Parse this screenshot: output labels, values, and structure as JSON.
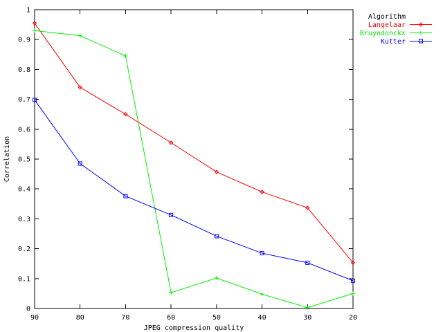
{
  "chart_data": {
    "type": "line",
    "title": "",
    "xlabel": "JPEG compression quality",
    "ylabel": "Correlation",
    "x": [
      90,
      80,
      70,
      60,
      50,
      40,
      30,
      20
    ],
    "x_tick_labels": [
      "90",
      "80",
      "70",
      "60",
      "50",
      "40",
      "30",
      "20"
    ],
    "y_tick_labels": [
      "0",
      "0.1",
      "0.2",
      "0.3",
      "0.4",
      "0.5",
      "0.6",
      "0.7",
      "0.8",
      "0.9",
      "1"
    ],
    "xlim": [
      90,
      20
    ],
    "ylim": [
      0,
      1
    ],
    "x_reversed": true,
    "grid": false,
    "legend": {
      "title": "Algorithm",
      "placement": "outside-top-right"
    },
    "series": [
      {
        "name": "Langelaar",
        "color": "#ff0000",
        "marker": "diamond",
        "values": [
          0.955,
          0.74,
          0.65,
          0.555,
          0.457,
          0.39,
          0.337,
          0.153
        ]
      },
      {
        "name": "Bruyndonckx",
        "color": "#00ee00",
        "marker": "plus",
        "values": [
          0.93,
          0.913,
          0.845,
          0.053,
          0.102,
          0.048,
          0.003,
          0.05
        ]
      },
      {
        "name": "Kutter",
        "color": "#0000ff",
        "marker": "square",
        "values": [
          0.698,
          0.485,
          0.376,
          0.313,
          0.242,
          0.185,
          0.153,
          0.093
        ]
      }
    ]
  }
}
